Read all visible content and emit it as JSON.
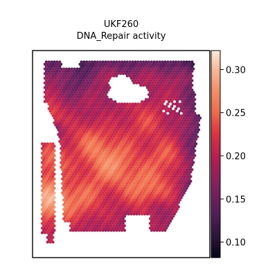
{
  "title_line1": "UKF260",
  "title_line2": "DNA_Repair activity",
  "chart_data": {
    "type": "heatmap",
    "title": "UKF260 DNA_Repair activity",
    "colorbar": {
      "colormap": "rocket",
      "range": [
        0.082,
        0.322
      ],
      "ticks": [
        0.1,
        0.15,
        0.2,
        0.25,
        0.3
      ],
      "tick_labels": [
        "0.10",
        "0.15",
        "0.20",
        "0.25",
        "0.30"
      ]
    },
    "spatial_spots": {
      "marker": "hexagonal spots",
      "axes_visible": false,
      "summary": "Spatial spot map; values mostly 0.18–0.30, higher (~0.27–0.32) in center-left and left strip, lower (~0.09–0.15) along upper and right edges"
    }
  }
}
